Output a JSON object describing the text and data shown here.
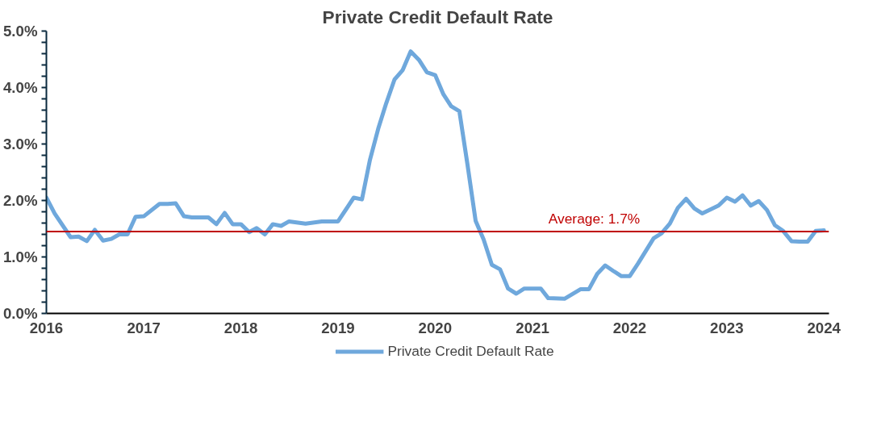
{
  "chart_data": {
    "type": "line",
    "title": "Private Credit Default Rate",
    "x": [
      "2016-01",
      "2016-02",
      "2016-04",
      "2016-05",
      "2016-06",
      "2016-07",
      "2016-08",
      "2016-09",
      "2016-10",
      "2016-11",
      "2016-12",
      "2017-01",
      "2017-03",
      "2017-04",
      "2017-05",
      "2017-06",
      "2017-07",
      "2017-09",
      "2017-10",
      "2017-11",
      "2017-12",
      "2018-01",
      "2018-02",
      "2018-03",
      "2018-04",
      "2018-05",
      "2018-06",
      "2018-07",
      "2018-09",
      "2018-11",
      "2019-01",
      "2019-02",
      "2019-03",
      "2019-04",
      "2019-05",
      "2019-06",
      "2019-07",
      "2019-08",
      "2019-09",
      "2019-10",
      "2019-11",
      "2019-12",
      "2020-01",
      "2020-02",
      "2020-03",
      "2020-04",
      "2020-05",
      "2020-06",
      "2020-07",
      "2020-08",
      "2020-09",
      "2020-10",
      "2020-11",
      "2020-12",
      "2021-02",
      "2021-03",
      "2021-05",
      "2021-07",
      "2021-08",
      "2021-09",
      "2021-10",
      "2021-11",
      "2021-12",
      "2022-01",
      "2022-02",
      "2022-04",
      "2022-05",
      "2022-06",
      "2022-07",
      "2022-08",
      "2022-09",
      "2022-10",
      "2022-12",
      "2023-01",
      "2023-02",
      "2023-03",
      "2023-04",
      "2023-05",
      "2023-06",
      "2023-07",
      "2023-08",
      "2023-09",
      "2023-10",
      "2023-11",
      "2023-12",
      "2024-01"
    ],
    "series": [
      {
        "name": "Private Credit Default Rate",
        "color": "#6fa8dc",
        "values": [
          2.05,
          1.77,
          1.35,
          1.36,
          1.28,
          1.48,
          1.29,
          1.32,
          1.4,
          1.4,
          1.71,
          1.72,
          1.94,
          1.94,
          1.95,
          1.72,
          1.7,
          1.7,
          1.58,
          1.78,
          1.58,
          1.58,
          1.44,
          1.51,
          1.4,
          1.58,
          1.55,
          1.63,
          1.59,
          1.63,
          1.63,
          1.85,
          2.05,
          2.02,
          2.72,
          3.27,
          3.72,
          4.14,
          4.31,
          4.64,
          4.49,
          4.27,
          4.22,
          3.88,
          3.67,
          3.58,
          2.65,
          1.64,
          1.31,
          0.86,
          0.78,
          0.44,
          0.35,
          0.44,
          0.44,
          0.27,
          0.26,
          0.43,
          0.43,
          0.7,
          0.85,
          0.75,
          0.66,
          0.66,
          0.88,
          1.33,
          1.42,
          1.59,
          1.87,
          2.03,
          1.86,
          1.77,
          1.91,
          2.05,
          1.98,
          2.09,
          1.91,
          1.99,
          1.83,
          1.56,
          1.46,
          1.28,
          1.27,
          1.27,
          1.46,
          1.47
        ]
      }
    ],
    "xlim": [
      "2016-01-01",
      "2024-01-20"
    ],
    "xticks": [
      "2016",
      "2017",
      "2018",
      "2019",
      "2020",
      "2021",
      "2022",
      "2023",
      "2024"
    ],
    "ylim": [
      0,
      5
    ],
    "yticks": [
      {
        "value": 0,
        "label": "0.0%"
      },
      {
        "value": 0.2,
        "label": null
      },
      {
        "value": 0.4,
        "label": null
      },
      {
        "value": 0.6,
        "label": null
      },
      {
        "value": 0.8,
        "label": null
      },
      {
        "value": 1,
        "label": "1.0%"
      },
      {
        "value": 1.2,
        "label": null
      },
      {
        "value": 1.4,
        "label": null
      },
      {
        "value": 1.6,
        "label": null
      },
      {
        "value": 1.8,
        "label": null
      },
      {
        "value": 2,
        "label": "2.0%"
      },
      {
        "value": 2.2,
        "label": null
      },
      {
        "value": 2.4,
        "label": null
      },
      {
        "value": 2.6,
        "label": null
      },
      {
        "value": 2.8,
        "label": null
      },
      {
        "value": 3,
        "label": "3.0%"
      },
      {
        "value": 3.2,
        "label": null
      },
      {
        "value": 3.4,
        "label": null
      },
      {
        "value": 3.6,
        "label": null
      },
      {
        "value": 3.8,
        "label": null
      },
      {
        "value": 4,
        "label": "4.0%"
      },
      {
        "value": 4.2,
        "label": null
      },
      {
        "value": 4.4,
        "label": null
      },
      {
        "value": 4.6,
        "label": null
      },
      {
        "value": 4.8,
        "label": null
      },
      {
        "value": 5,
        "label": "5.0%"
      }
    ],
    "ref_lines": [
      {
        "axis": "y",
        "value": 1.45,
        "color": "#c00000"
      }
    ],
    "annotations": [
      "Average: 1.7%"
    ],
    "grid": false,
    "legend": "bottom",
    "line_style": "solid"
  }
}
